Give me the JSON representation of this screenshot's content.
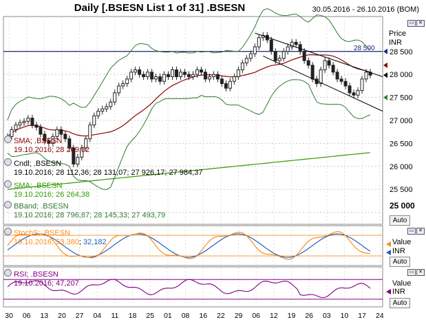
{
  "header": {
    "title": "Daily [.BSESN List 1 of 31] .BSESN",
    "date_range": "30.05.2016 - 26.10.2016 (BOM)"
  },
  "colors": {
    "price_panel_bg": "#ffffff",
    "sma20": "#8b0000",
    "sma100": "#339900",
    "bband": "#2f7a2f",
    "candle": "#222222",
    "stoch_k": "#ff8c1a",
    "stoch_d": "#2060c0",
    "stoch_levels": "#e8a040",
    "rsi": "#800080",
    "rsi_levels": "#800080"
  },
  "price_panel": {
    "axis_label": "Price",
    "currency": "INR",
    "hline_label": "28 500",
    "last_tick": "25 000",
    "auto_label": "Auto",
    "legend": {
      "sma1_name": "SMA; .BSESN",
      "sma1_value": "19.10.2016; 28 209,02",
      "candle_name": "Cndl; .BSESN",
      "candle_value": "19.10.2016; 28 112,36; 28 131,07; 27 926,17; 27 984,37",
      "sma2_name": "SMA; .BSESN",
      "sma2_value": "19.10.2016; 26 264,38",
      "bband_name": "BBand; .BSESN",
      "bband_value": "19.10.2016; 28 796,87; 28 145,33; 27 493,79"
    }
  },
  "stoch_panel": {
    "name": "StochS; .BSESN",
    "value_prefix": "19.10.2016; ",
    "k_value": "53,380",
    "d_value": "32,182",
    "axis_label": "Value",
    "currency": "INR"
  },
  "rsi_panel": {
    "name": "RSI; .BSESN",
    "value": "19.10.2016; 47,207",
    "axis_label": "Value",
    "currency": "INR"
  },
  "chart_data": {
    "type": "candlestick",
    "title": "Daily [.BSESN List 1 of 31] .BSESN",
    "date_range": "30.05.2016 - 26.10.2016",
    "y_ticks": [
      "28 500",
      "28 000",
      "27 500",
      "27 000",
      "26 500",
      "26 000",
      "25 500",
      "25 000"
    ],
    "y_range": [
      24800,
      29200
    ],
    "x_ticks": [
      "30",
      "06",
      "13",
      "20",
      "27",
      "04",
      "11",
      "18",
      "25",
      "01",
      "08",
      "16",
      "22",
      "29",
      "06",
      "12",
      "19",
      "26",
      "03",
      "10",
      "17",
      "24"
    ],
    "close_path": [
      [
        0,
        26650
      ],
      [
        1,
        26800
      ],
      [
        2,
        26900
      ],
      [
        3,
        26950
      ],
      [
        4,
        26980
      ],
      [
        5,
        27050
      ],
      [
        6,
        26900
      ],
      [
        7,
        26850
      ],
      [
        8,
        26700
      ],
      [
        9,
        26550
      ],
      [
        10,
        26500
      ],
      [
        11,
        26650
      ],
      [
        12,
        26800
      ],
      [
        13,
        26700
      ],
      [
        14,
        26600
      ],
      [
        15,
        26400
      ],
      [
        16,
        26050
      ],
      [
        17,
        26200
      ],
      [
        18,
        26400
      ],
      [
        19,
        26600
      ],
      [
        20,
        26900
      ],
      [
        21,
        27100
      ],
      [
        22,
        27200
      ],
      [
        23,
        27250
      ],
      [
        24,
        27300
      ],
      [
        25,
        27400
      ],
      [
        26,
        27600
      ],
      [
        27,
        27750
      ],
      [
        28,
        27800
      ],
      [
        29,
        27900
      ],
      [
        30,
        28050
      ],
      [
        31,
        28100
      ],
      [
        32,
        28000
      ],
      [
        33,
        27950
      ],
      [
        34,
        28050
      ],
      [
        35,
        27900
      ],
      [
        36,
        27950
      ],
      [
        37,
        27850
      ],
      [
        38,
        28000
      ],
      [
        39,
        27950
      ],
      [
        40,
        28100
      ],
      [
        41,
        27950
      ],
      [
        42,
        28050
      ],
      [
        43,
        28000
      ],
      [
        44,
        27950
      ],
      [
        45,
        28000
      ],
      [
        46,
        28100
      ],
      [
        47,
        28050
      ],
      [
        48,
        27900
      ],
      [
        49,
        27950
      ],
      [
        50,
        28000
      ],
      [
        51,
        27900
      ],
      [
        52,
        27800
      ],
      [
        53,
        27700
      ],
      [
        54,
        27850
      ],
      [
        55,
        27950
      ],
      [
        56,
        28100
      ],
      [
        57,
        28250
      ],
      [
        58,
        28350
      ],
      [
        59,
        28450
      ],
      [
        60,
        28600
      ],
      [
        61,
        28800
      ],
      [
        62,
        28850
      ],
      [
        63,
        28750
      ],
      [
        64,
        28500
      ],
      [
        65,
        28300
      ],
      [
        66,
        28350
      ],
      [
        67,
        28500
      ],
      [
        68,
        28600
      ],
      [
        69,
        28700
      ],
      [
        70,
        28650
      ],
      [
        71,
        28500
      ],
      [
        72,
        28300
      ],
      [
        73,
        28200
      ],
      [
        74,
        27900
      ],
      [
        75,
        27800
      ],
      [
        76,
        28100
      ],
      [
        77,
        28300
      ],
      [
        78,
        28200
      ],
      [
        79,
        28050
      ],
      [
        80,
        27900
      ],
      [
        81,
        27850
      ],
      [
        82,
        27750
      ],
      [
        83,
        27600
      ],
      [
        84,
        27550
      ],
      [
        85,
        27650
      ],
      [
        86,
        27900
      ],
      [
        87,
        28050
      ],
      [
        88,
        27984
      ]
    ],
    "sma_short": {
      "last": "28 209,02"
    },
    "sma_long": {
      "last": "26 264,38"
    },
    "bollinger": {
      "upper": "28 796,87",
      "middle": "28 145,33",
      "lower": "27 493,79"
    },
    "price_hline": 28500,
    "stoch": {
      "levels": [
        80,
        20
      ],
      "k_last": 53.38,
      "d_last": 32.182
    },
    "rsi": {
      "levels": [
        70,
        30
      ],
      "last": 47.207
    }
  }
}
